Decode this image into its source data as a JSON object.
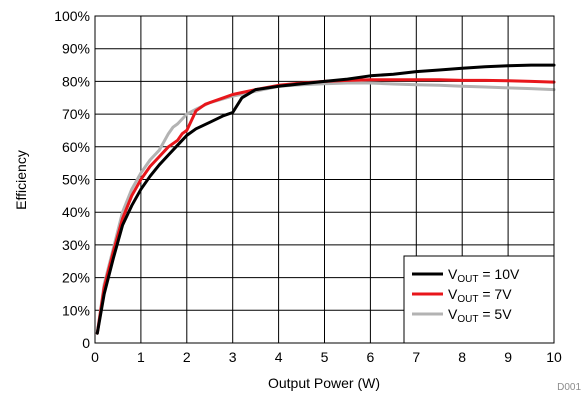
{
  "chart_data": {
    "type": "line",
    "xlabel": "Output Power (W)",
    "ylabel": "Efficiency",
    "footnote": "D001",
    "xlim": [
      0,
      10
    ],
    "ylim": [
      0,
      100
    ],
    "x_ticks": [
      "0",
      "1",
      "2",
      "3",
      "4",
      "5",
      "6",
      "7",
      "8",
      "9",
      "10"
    ],
    "y_ticks": [
      "0",
      "10%",
      "20%",
      "30%",
      "40%",
      "50%",
      "60%",
      "70%",
      "80%",
      "90%",
      "100%"
    ],
    "grid": true,
    "legend_position": "bottom-right",
    "series": [
      {
        "name": "VOUT = 10V",
        "label_main": "V",
        "label_sub": "OUT",
        "label_rest": " = 10V",
        "color": "#000000",
        "x": [
          0.05,
          0.2,
          0.4,
          0.6,
          0.8,
          1.0,
          1.2,
          1.4,
          1.6,
          1.8,
          2.0,
          2.2,
          2.5,
          2.8,
          3.0,
          3.2,
          3.5,
          4.0,
          4.5,
          5.0,
          5.5,
          6.0,
          6.5,
          7.0,
          7.5,
          8.0,
          8.5,
          9.0,
          9.5,
          10.0
        ],
        "y": [
          3,
          15,
          26,
          36,
          42,
          47,
          51,
          54.5,
          57.5,
          60.5,
          63.5,
          65.5,
          67.5,
          69.5,
          70.5,
          75,
          77.5,
          78.5,
          79.3,
          80,
          80.7,
          81.7,
          82.2,
          83,
          83.5,
          84,
          84.5,
          84.8,
          85,
          85
        ]
      },
      {
        "name": "VOUT = 7V",
        "label_main": "V",
        "label_sub": "OUT",
        "label_rest": " = 7V",
        "color": "#e8161b",
        "x": [
          0.05,
          0.2,
          0.4,
          0.6,
          0.8,
          1.0,
          1.2,
          1.4,
          1.6,
          1.8,
          1.9,
          2.0,
          2.1,
          2.2,
          2.4,
          2.6,
          2.8,
          3.0,
          3.5,
          4.0,
          4.5,
          5.0,
          5.5,
          6.0,
          6.5,
          7.0,
          7.5,
          8.0,
          8.5,
          9.0,
          9.5,
          10.0
        ],
        "y": [
          3,
          17,
          28,
          38,
          45,
          50,
          54,
          57,
          60,
          62,
          64,
          65,
          68,
          71,
          73,
          74,
          75,
          76,
          77.5,
          78.8,
          79.5,
          80,
          80.3,
          80.5,
          80.5,
          80.5,
          80.5,
          80.3,
          80.3,
          80.2,
          80,
          79.8
        ]
      },
      {
        "name": "VOUT = 5V",
        "label_main": "V",
        "label_sub": "OUT",
        "label_rest": " = 5V",
        "color": "#b3b3b3",
        "x": [
          0.05,
          0.2,
          0.4,
          0.6,
          0.8,
          1.0,
          1.2,
          1.4,
          1.6,
          1.7,
          1.8,
          2.0,
          2.2,
          2.5,
          3.0,
          3.5,
          4.0,
          4.5,
          5.0,
          5.5,
          6.0,
          6.5,
          7.0,
          7.5,
          8.0,
          8.5,
          9.0,
          9.5,
          10.0
        ],
        "y": [
          3,
          18,
          29,
          40,
          47,
          52,
          56,
          59,
          64,
          66,
          67,
          70,
          71.5,
          73.5,
          75.5,
          77,
          78.5,
          79,
          79.3,
          79.5,
          79.5,
          79.2,
          79,
          78.8,
          78.5,
          78.3,
          78,
          77.8,
          77.5
        ]
      }
    ]
  }
}
